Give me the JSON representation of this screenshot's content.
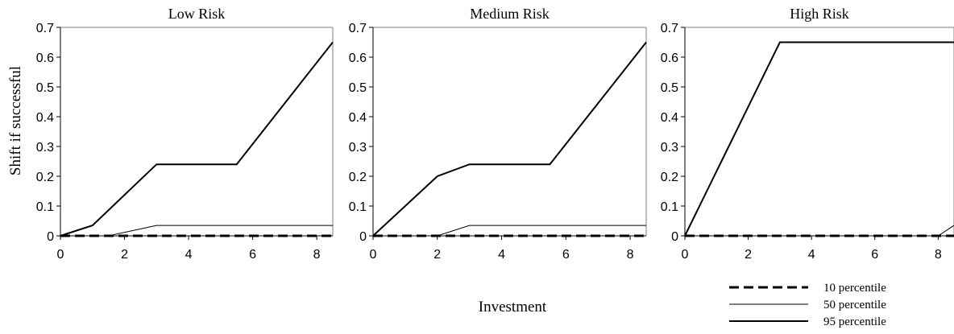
{
  "chart_data": [
    {
      "type": "line",
      "title": "Low Risk",
      "xlim": [
        0,
        8.5
      ],
      "ylim": [
        0,
        0.7
      ],
      "xticks": [
        0,
        2,
        4,
        6,
        8
      ],
      "yticks": [
        0,
        0.1,
        0.2,
        0.3,
        0.4,
        0.5,
        0.6,
        0.7
      ],
      "xtick_labels": [
        "0",
        "2",
        "4",
        "6",
        "8"
      ],
      "ytick_labels": [
        "0",
        "0.1",
        "0.2",
        "0.3",
        "0.4",
        "0.5",
        "0.6",
        "0.7"
      ],
      "series": [
        {
          "name": "10 percentile",
          "style": "dashed",
          "x": [
            0,
            8.5
          ],
          "y": [
            0,
            0
          ]
        },
        {
          "name": "50 percentile",
          "style": "thin",
          "x": [
            0,
            1.5,
            3,
            5.5,
            8.5
          ],
          "y": [
            0,
            0,
            0.035,
            0.035,
            0.035
          ]
        },
        {
          "name": "95 percentile",
          "style": "thick",
          "x": [
            0,
            1,
            3,
            5.5,
            8.5
          ],
          "y": [
            0,
            0.035,
            0.24,
            0.24,
            0.65
          ]
        }
      ]
    },
    {
      "type": "line",
      "title": "Medium Risk",
      "xlim": [
        0,
        8.5
      ],
      "ylim": [
        0,
        0.7
      ],
      "xticks": [
        0,
        2,
        4,
        6,
        8
      ],
      "yticks": [
        0,
        0.1,
        0.2,
        0.3,
        0.4,
        0.5,
        0.6,
        0.7
      ],
      "xtick_labels": [
        "0",
        "2",
        "4",
        "6",
        "8"
      ],
      "ytick_labels": [
        "0",
        "0.1",
        "0.2",
        "0.3",
        "0.4",
        "0.5",
        "0.6",
        "0.7"
      ],
      "series": [
        {
          "name": "10 percentile",
          "style": "dashed",
          "x": [
            0,
            8.5
          ],
          "y": [
            0,
            0
          ]
        },
        {
          "name": "50 percentile",
          "style": "thin",
          "x": [
            0,
            2,
            3,
            5.5,
            8.5
          ],
          "y": [
            0,
            0,
            0.035,
            0.035,
            0.035
          ]
        },
        {
          "name": "95 percentile",
          "style": "thick",
          "x": [
            0,
            2,
            3,
            5.5,
            8.5
          ],
          "y": [
            0,
            0.2,
            0.24,
            0.24,
            0.65
          ]
        }
      ]
    },
    {
      "type": "line",
      "title": "High Risk",
      "xlim": [
        0,
        8.5
      ],
      "ylim": [
        0,
        0.7
      ],
      "xticks": [
        0,
        2,
        4,
        6,
        8
      ],
      "yticks": [
        0,
        0.1,
        0.2,
        0.3,
        0.4,
        0.5,
        0.6,
        0.7
      ],
      "xtick_labels": [
        "0",
        "2",
        "4",
        "6",
        "8"
      ],
      "ytick_labels": [
        "0",
        "0.1",
        "0.2",
        "0.3",
        "0.4",
        "0.5",
        "0.6",
        "0.7"
      ],
      "series": [
        {
          "name": "10 percentile",
          "style": "dashed",
          "x": [
            0,
            8.5
          ],
          "y": [
            0,
            0
          ]
        },
        {
          "name": "50 percentile",
          "style": "thin",
          "x": [
            0,
            8,
            8.5
          ],
          "y": [
            0,
            0,
            0.035
          ]
        },
        {
          "name": "95 percentile",
          "style": "thick",
          "x": [
            0,
            3,
            5,
            8.5
          ],
          "y": [
            0,
            0.65,
            0.65,
            0.65
          ]
        }
      ]
    }
  ],
  "axes": {
    "ylabel": "Shift if successful",
    "xlabel": "Investment"
  },
  "legend": {
    "placement": "bottom-right",
    "entries": [
      {
        "label": "10 percentile",
        "style": "dashed"
      },
      {
        "label": "50 percentile",
        "style": "thin"
      },
      {
        "label": "95 percentile",
        "style": "thick"
      }
    ]
  },
  "colors": {
    "line": "#000000",
    "frame": "#000000",
    "background": "#ffffff"
  }
}
